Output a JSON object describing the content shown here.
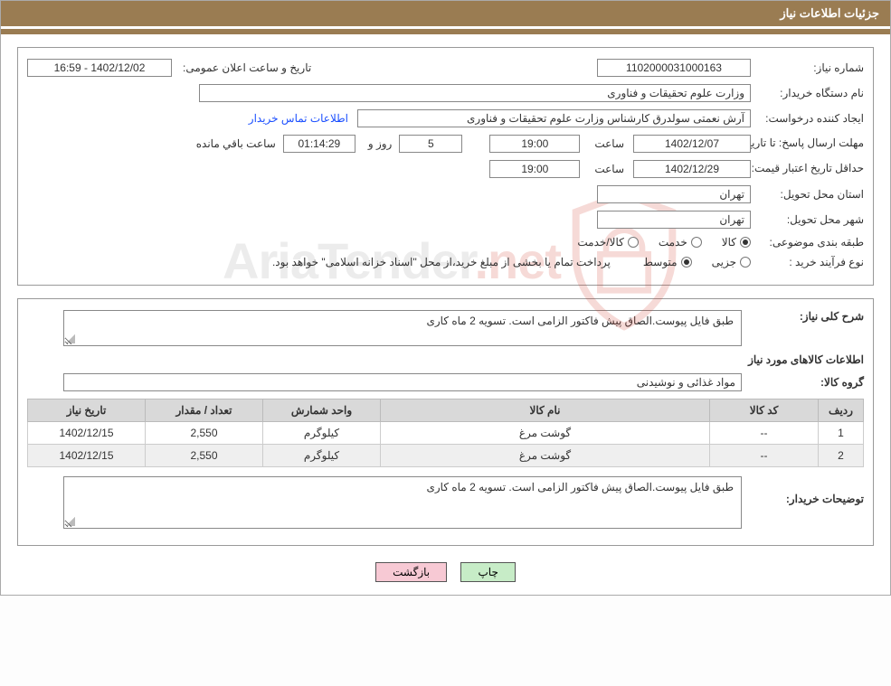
{
  "header": {
    "title": "جزئیات اطلاعات نیاز"
  },
  "fields": {
    "need_no_label": "شماره نیاز:",
    "need_no": "1102000031000163",
    "announce_label": "تاریخ و ساعت اعلان عمومی:",
    "announce_value": "1402/12/02 - 16:59",
    "buyer_org_label": "نام دستگاه خریدار:",
    "buyer_org": "وزارت علوم  تحقیقات و فناوری",
    "requester_label": "ایجاد کننده درخواست:",
    "requester": "آرش نعمتی سولدرق کارشناس وزارت علوم  تحقیقات و فناوری",
    "contact_link": "اطلاعات تماس خریدار",
    "deadline_label": "مهلت ارسال پاسخ:",
    "until_label": "تا تاریخ:",
    "deadline_date": "1402/12/07",
    "time_label": "ساعت",
    "deadline_time": "19:00",
    "days_value": "5",
    "days_label": "روز و",
    "countdown": "01:14:29",
    "countdown_label": "ساعت باقي مانده",
    "min_validity_label": "حداقل تاریخ اعتبار قیمت:",
    "min_validity_date": "1402/12/29",
    "min_validity_time": "19:00",
    "delivery_province_label": "استان محل تحویل:",
    "delivery_province": "تهران",
    "delivery_city_label": "شهر محل تحویل:",
    "delivery_city": "تهران",
    "subject_class_label": "طبقه بندی موضوعی:",
    "radio_goods": "کالا",
    "radio_service": "خدمت",
    "radio_goods_service": "کالا/خدمت",
    "purchase_type_label": "نوع فرآیند خرید :",
    "radio_minor": "جزیی",
    "radio_medium": "متوسط",
    "purchase_note": "پرداخت تمام یا بخشی از مبلغ خرید،از محل \"اسناد خزانه اسلامی\" خواهد بود."
  },
  "summary": {
    "need_desc_label": "شرح کلی نیاز:",
    "need_desc": "طبق فایل پیوست.الصاق پیش فاکتور الزامی است. تسویه 2 ماه کاری",
    "items_title": "اطلاعات کالاهای مورد نیاز",
    "group_label": "گروه کالا:",
    "group_value": "مواد غذائی و نوشیدنی",
    "buyer_notes_label": "توضیحات خریدار:",
    "buyer_notes": "طبق فایل پیوست.الصاق پیش فاکتور الزامی است. تسویه 2 ماه کاری"
  },
  "table": {
    "columns": {
      "row": "ردیف",
      "code": "کد کالا",
      "name": "نام کالا",
      "unit": "واحد شمارش",
      "qty": "تعداد / مقدار",
      "date": "تاریخ نیاز"
    },
    "col_widths": [
      "50px",
      "120px",
      "auto",
      "130px",
      "130px",
      "130px"
    ],
    "header_bg": "#d9d9d9",
    "rows": [
      {
        "row": "1",
        "code": "--",
        "name": "گوشت مرغ",
        "unit": "کیلوگرم",
        "qty": "2,550",
        "date": "1402/12/15"
      },
      {
        "row": "2",
        "code": "--",
        "name": "گوشت مرغ",
        "unit": "کیلوگرم",
        "qty": "2,550",
        "date": "1402/12/15"
      }
    ]
  },
  "buttons": {
    "print": "چاپ",
    "back": "بازگشت"
  },
  "watermark": {
    "text_a": "AriaTender",
    "text_b": ".net",
    "shield_color": "#d23a2a"
  },
  "colors": {
    "header_bg": "#9a7c52",
    "border": "#999999",
    "link": "#1b4fff",
    "btn_print": "#c7ecc7",
    "btn_back": "#f7c9d4"
  }
}
